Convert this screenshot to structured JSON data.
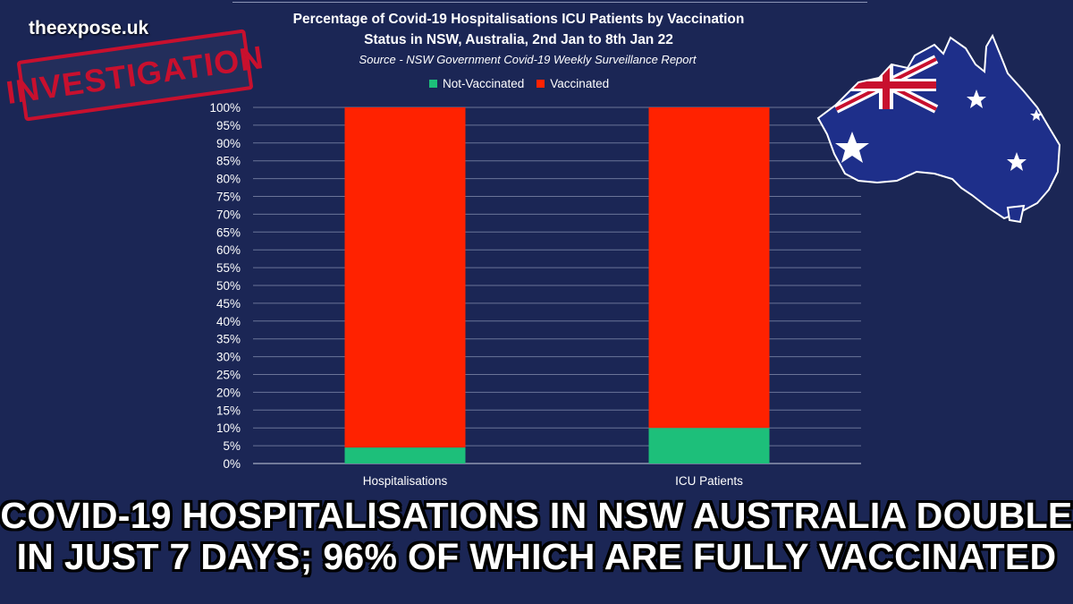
{
  "brand": "theexpose.uk",
  "stamp_text": "INVESTIGATION",
  "chart_data": {
    "type": "bar",
    "stacked": true,
    "percent": true,
    "title_line1": "Percentage of Covid-19  Hospitalisations ICU Patients by Vaccination",
    "title_line2": "Status in NSW, Australia, 2nd Jan to 8th Jan 22",
    "subtitle": "Source - NSW Government Covid-19 Weekly Surveillance Report",
    "categories": [
      "Hospitalisations",
      "ICU Patients"
    ],
    "series": [
      {
        "name": "Not-Vaccinated",
        "color": "#1dbf7a",
        "values": [
          4.5,
          10
        ]
      },
      {
        "name": "Vaccinated",
        "color": "#ff2200",
        "values": [
          95.5,
          90
        ]
      }
    ],
    "ylim": [
      0,
      100
    ],
    "yticks": [
      "0%",
      "5%",
      "10%",
      "15%",
      "20%",
      "25%",
      "30%",
      "35%",
      "40%",
      "45%",
      "50%",
      "55%",
      "60%",
      "65%",
      "70%",
      "75%",
      "80%",
      "85%",
      "90%",
      "95%",
      "100%"
    ],
    "grid": true,
    "legend": "top-center"
  },
  "headline_line1": "COVID-19 HOSPITALISATIONS IN NSW AUSTRALIA DOUBLE",
  "headline_line2": "IN JUST 7 DAYS; 96% OF WHICH ARE FULLY VACCINATED",
  "map_icon": "australia-flag-map-icon"
}
